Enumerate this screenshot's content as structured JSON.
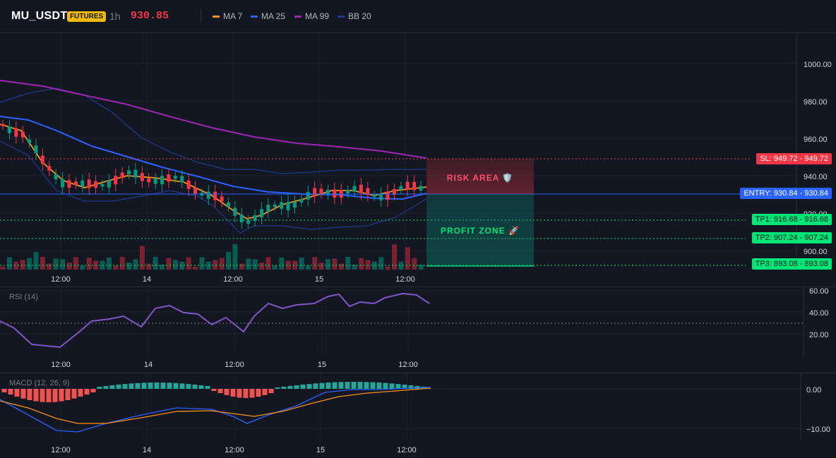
{
  "header": {
    "symbol": "MU_USDT",
    "badge": "FUTURES",
    "timeframe": "1h",
    "last_price": "930.85"
  },
  "indicators": [
    {
      "label": "MA 7",
      "color": "#f7931a"
    },
    {
      "label": "MA 25",
      "color": "#2962ff"
    },
    {
      "label": "MA 99",
      "color": "#9c27b0"
    },
    {
      "label": "BB 20",
      "color": "#1e3a8a"
    }
  ],
  "price_axis": {
    "ticks": [
      "1000.00",
      "980.00",
      "960.00",
      "940.00",
      "920.00",
      "900.00"
    ]
  },
  "time_axis": {
    "ticks": [
      "12:00",
      "14",
      "12:00",
      "15",
      "12:00"
    ]
  },
  "trade_levels": {
    "sl": {
      "label": "SL: 949.72",
      "value": "949.72",
      "color": "#f23645"
    },
    "entry": {
      "label": "ENTRY: 930.84",
      "value": "930.84",
      "color": "#2962ff"
    },
    "tp1": {
      "label": "TP1: 916.68",
      "value": "916.68",
      "color": "#00e676"
    },
    "tp2": {
      "label": "TP2: 907.24",
      "value": "907.24",
      "color": "#00e676"
    },
    "tp3": {
      "label": "TP3: 893.08",
      "value": "893.08",
      "color": "#00e676"
    }
  },
  "zones": {
    "risk": "RISK AREA 🛡️",
    "profit": "PROFIT ZONE 🚀"
  },
  "rsi": {
    "label": "RSI (14)",
    "ticks": [
      "60.00",
      "40.00",
      "20.00"
    ]
  },
  "macd": {
    "label": "MACD (12, 26, 9)",
    "ticks": [
      "0.00",
      "−10.00"
    ]
  },
  "colors": {
    "up": "#089981",
    "down": "#f23645",
    "background": "#131722",
    "grid": "#1e222d"
  }
}
